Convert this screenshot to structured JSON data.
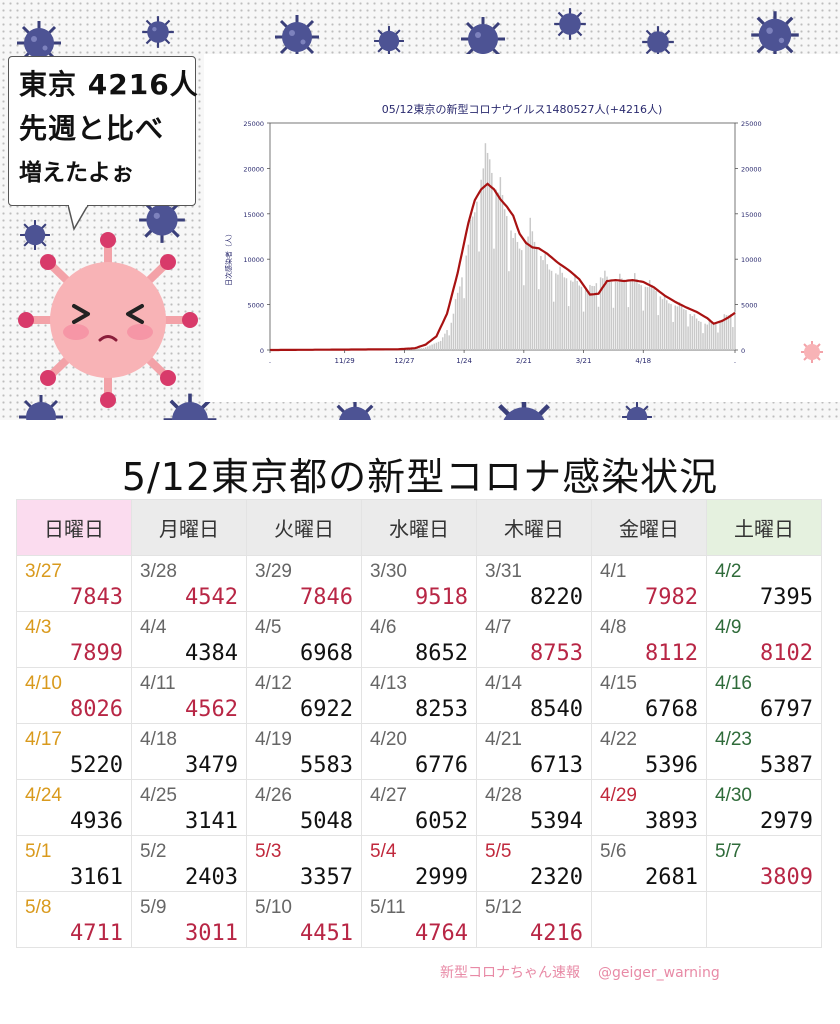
{
  "bubble": {
    "line1": "東京 4216人",
    "line2": "先週と比べ",
    "line3": "増えたよぉ"
  },
  "main_title": "5/12東京都の新型コロナ感染状況",
  "footer": {
    "text": "新型コロナちゃん速報",
    "handle": "@geiger_warning"
  },
  "colors": {
    "accent_red": "#b82645",
    "orange": "#d99a1d",
    "ma_line": "#a81212",
    "bars": "#c9c9c9",
    "axis_text": "#2a2a6e"
  },
  "calendar": {
    "headers": [
      "日曜日",
      "月曜日",
      "火曜日",
      "水曜日",
      "木曜日",
      "金曜日",
      "土曜日"
    ],
    "weeks": [
      [
        {
          "date": "3/27",
          "value": "7843",
          "dc": "orange",
          "vc": "red"
        },
        {
          "date": "3/28",
          "value": "4542",
          "dc": "",
          "vc": "red"
        },
        {
          "date": "3/29",
          "value": "7846",
          "dc": "",
          "vc": "red"
        },
        {
          "date": "3/30",
          "value": "9518",
          "dc": "",
          "vc": "red"
        },
        {
          "date": "3/31",
          "value": "8220",
          "dc": "",
          "vc": ""
        },
        {
          "date": "4/1",
          "value": "7982",
          "dc": "",
          "vc": "red"
        },
        {
          "date": "4/2",
          "value": "7395",
          "dc": "green",
          "vc": ""
        }
      ],
      [
        {
          "date": "4/3",
          "value": "7899",
          "dc": "orange",
          "vc": "red"
        },
        {
          "date": "4/4",
          "value": "4384",
          "dc": "",
          "vc": ""
        },
        {
          "date": "4/5",
          "value": "6968",
          "dc": "",
          "vc": ""
        },
        {
          "date": "4/6",
          "value": "8652",
          "dc": "",
          "vc": ""
        },
        {
          "date": "4/7",
          "value": "8753",
          "dc": "",
          "vc": "red"
        },
        {
          "date": "4/8",
          "value": "8112",
          "dc": "",
          "vc": "red"
        },
        {
          "date": "4/9",
          "value": "8102",
          "dc": "green",
          "vc": "red"
        }
      ],
      [
        {
          "date": "4/10",
          "value": "8026",
          "dc": "orange",
          "vc": "red"
        },
        {
          "date": "4/11",
          "value": "4562",
          "dc": "",
          "vc": "red"
        },
        {
          "date": "4/12",
          "value": "6922",
          "dc": "",
          "vc": ""
        },
        {
          "date": "4/13",
          "value": "8253",
          "dc": "",
          "vc": ""
        },
        {
          "date": "4/14",
          "value": "8540",
          "dc": "",
          "vc": ""
        },
        {
          "date": "4/15",
          "value": "6768",
          "dc": "",
          "vc": ""
        },
        {
          "date": "4/16",
          "value": "6797",
          "dc": "green",
          "vc": ""
        }
      ],
      [
        {
          "date": "4/17",
          "value": "5220",
          "dc": "orange",
          "vc": ""
        },
        {
          "date": "4/18",
          "value": "3479",
          "dc": "",
          "vc": ""
        },
        {
          "date": "4/19",
          "value": "5583",
          "dc": "",
          "vc": ""
        },
        {
          "date": "4/20",
          "value": "6776",
          "dc": "",
          "vc": ""
        },
        {
          "date": "4/21",
          "value": "6713",
          "dc": "",
          "vc": ""
        },
        {
          "date": "4/22",
          "value": "5396",
          "dc": "",
          "vc": ""
        },
        {
          "date": "4/23",
          "value": "5387",
          "dc": "green",
          "vc": ""
        }
      ],
      [
        {
          "date": "4/24",
          "value": "4936",
          "dc": "orange",
          "vc": ""
        },
        {
          "date": "4/25",
          "value": "3141",
          "dc": "",
          "vc": ""
        },
        {
          "date": "4/26",
          "value": "5048",
          "dc": "",
          "vc": ""
        },
        {
          "date": "4/27",
          "value": "6052",
          "dc": "",
          "vc": ""
        },
        {
          "date": "4/28",
          "value": "5394",
          "dc": "",
          "vc": ""
        },
        {
          "date": "4/29",
          "value": "3893",
          "dc": "red",
          "vc": ""
        },
        {
          "date": "4/30",
          "value": "2979",
          "dc": "green",
          "vc": ""
        }
      ],
      [
        {
          "date": "5/1",
          "value": "3161",
          "dc": "orange",
          "vc": ""
        },
        {
          "date": "5/2",
          "value": "2403",
          "dc": "",
          "vc": ""
        },
        {
          "date": "5/3",
          "value": "3357",
          "dc": "red",
          "vc": ""
        },
        {
          "date": "5/4",
          "value": "2999",
          "dc": "red",
          "vc": ""
        },
        {
          "date": "5/5",
          "value": "2320",
          "dc": "red",
          "vc": ""
        },
        {
          "date": "5/6",
          "value": "2681",
          "dc": "",
          "vc": ""
        },
        {
          "date": "5/7",
          "value": "3809",
          "dc": "green",
          "vc": "red"
        }
      ],
      [
        {
          "date": "5/8",
          "value": "4711",
          "dc": "orange",
          "vc": "red"
        },
        {
          "date": "5/9",
          "value": "3011",
          "dc": "",
          "vc": "red"
        },
        {
          "date": "5/10",
          "value": "4451",
          "dc": "",
          "vc": "red"
        },
        {
          "date": "5/11",
          "value": "4764",
          "dc": "",
          "vc": "red"
        },
        {
          "date": "5/12",
          "value": "4216",
          "dc": "",
          "vc": "red"
        },
        {
          "date": "",
          "value": "",
          "dc": "",
          "vc": ""
        },
        {
          "date": "",
          "value": "",
          "dc": "",
          "vc": ""
        }
      ]
    ]
  },
  "chart_data": {
    "type": "bar",
    "title": "05/12東京の新型コロナウイルス1480527人(+4216人)",
    "ylabel": "日次感染者（人）",
    "xlabel": "",
    "ylim": [
      0,
      25000
    ],
    "y_ticks": [
      "0",
      "5000",
      "10000",
      "15000",
      "20000",
      "25000"
    ],
    "x_tick_labels": [
      ".",
      "11/29",
      "12/27",
      "1/24",
      "2/21",
      "3/21",
      "4/18",
      "."
    ],
    "x_tick_days": [
      0,
      35,
      63,
      91,
      119,
      147,
      175,
      218
    ],
    "grid": false,
    "series": [
      {
        "type": "bar",
        "anchor_days": [
          0,
          60,
          72,
          80,
          85,
          90,
          95,
          98,
          100,
          103,
          105,
          108,
          112,
          115,
          118,
          122,
          126,
          130,
          135,
          140,
          145,
          150,
          155,
          160,
          165,
          170,
          175,
          180,
          185,
          190,
          195,
          200,
          205,
          210,
          215,
          218
        ],
        "values": [
          0,
          100,
          200,
          1000,
          3000,
          8000,
          14000,
          17500,
          20000,
          21000,
          18000,
          17000,
          14000,
          11500,
          11000,
          13000,
          10800,
          9000,
          8300,
          7800,
          7100,
          6400,
          8000,
          7500,
          7500,
          7700,
          7000,
          6800,
          5300,
          4900,
          4400,
          3300,
          2800,
          3100,
          3800,
          4216
        ]
      },
      {
        "type": "line",
        "anchor_days": [
          0,
          60,
          68,
          73,
          78,
          83,
          88,
          93,
          96,
          99,
          102,
          105,
          108,
          111,
          114,
          117,
          120,
          123,
          126,
          130,
          135,
          140,
          145,
          150,
          154,
          158,
          162,
          166,
          170,
          175,
          180,
          185,
          190,
          195,
          200,
          205,
          208,
          212,
          215,
          218
        ],
        "values": [
          0,
          80,
          200,
          600,
          1500,
          4000,
          8500,
          14000,
          16500,
          17700,
          18300,
          17700,
          16600,
          15800,
          14800,
          12800,
          11800,
          11300,
          11200,
          10600,
          9600,
          8800,
          7800,
          6100,
          6200,
          7600,
          7700,
          7600,
          7700,
          7500,
          6900,
          6000,
          5300,
          4700,
          4200,
          3500,
          2900,
          3200,
          3600,
          4100
        ]
      }
    ]
  }
}
